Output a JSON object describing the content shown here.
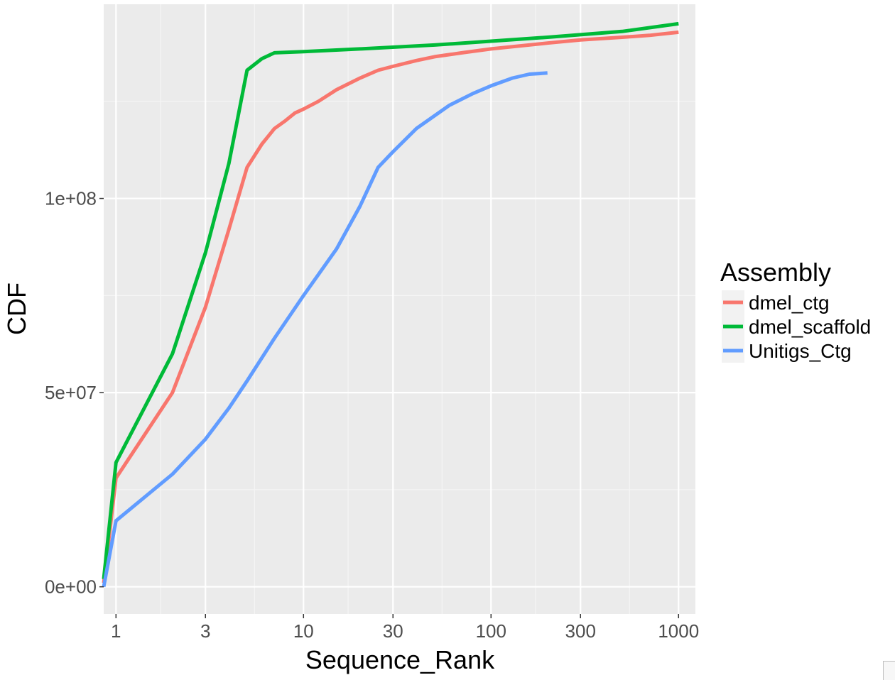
{
  "chart_data": {
    "type": "line",
    "title": "",
    "xlabel": "Sequence_Rank",
    "ylabel": "CDF",
    "x_scale": "log10",
    "xlim": [
      0.86,
      1230
    ],
    "ylim": [
      -7000000,
      150000000
    ],
    "x_ticks": [
      1,
      3,
      10,
      30,
      100,
      300,
      1000
    ],
    "x_tick_labels": [
      "1",
      "3",
      "10",
      "30",
      "100",
      "300",
      "1000"
    ],
    "x_minor_ticks": [
      1.73,
      5.48,
      17.3,
      54.8,
      173,
      548
    ],
    "y_ticks": [
      0,
      50000000,
      100000000
    ],
    "y_tick_labels": [
      "0e+00",
      "5e+07",
      "1e+08"
    ],
    "y_minor_ticks": [
      25000000,
      75000000,
      125000000
    ],
    "grid": true,
    "legend": {
      "title": "Assembly",
      "position": "right"
    },
    "series": [
      {
        "name": "dmel_ctg",
        "color": "#F8766D",
        "x": [
          0.86,
          1,
          2,
          3,
          4,
          5,
          6,
          7,
          8,
          9,
          10,
          12,
          15,
          20,
          25,
          30,
          40,
          50,
          70,
          100,
          200,
          300,
          500,
          700,
          1000
        ],
        "y": [
          1000000,
          28000000,
          50000000,
          72000000,
          92000000,
          108000000,
          114000000,
          118000000,
          120000000,
          122000000,
          123000000,
          125000000,
          128000000,
          131000000,
          133000000,
          134000000,
          135500000,
          136500000,
          137500000,
          138500000,
          140000000,
          140800000,
          141500000,
          142000000,
          142800000
        ]
      },
      {
        "name": "dmel_scaffold",
        "color": "#00BA38",
        "x": [
          0.86,
          1,
          2,
          3,
          4,
          5,
          6,
          7,
          10,
          20,
          50,
          100,
          200,
          500,
          1000
        ],
        "y": [
          2000000,
          32000000,
          60000000,
          86000000,
          109000000,
          133000000,
          136000000,
          137500000,
          137800000,
          138500000,
          139500000,
          140500000,
          141500000,
          143000000,
          145000000
        ]
      },
      {
        "name": "Unitigs_Ctg",
        "color": "#619CFF",
        "x": [
          0.86,
          1,
          2,
          3,
          4,
          5,
          7,
          10,
          15,
          20,
          25,
          30,
          40,
          60,
          80,
          100,
          130,
          160,
          200
        ],
        "y": [
          0,
          17000000,
          29000000,
          38000000,
          46000000,
          53000000,
          64000000,
          75000000,
          87000000,
          98000000,
          108000000,
          112000000,
          118000000,
          124000000,
          127000000,
          129000000,
          131000000,
          132000000,
          132300000
        ]
      }
    ]
  }
}
